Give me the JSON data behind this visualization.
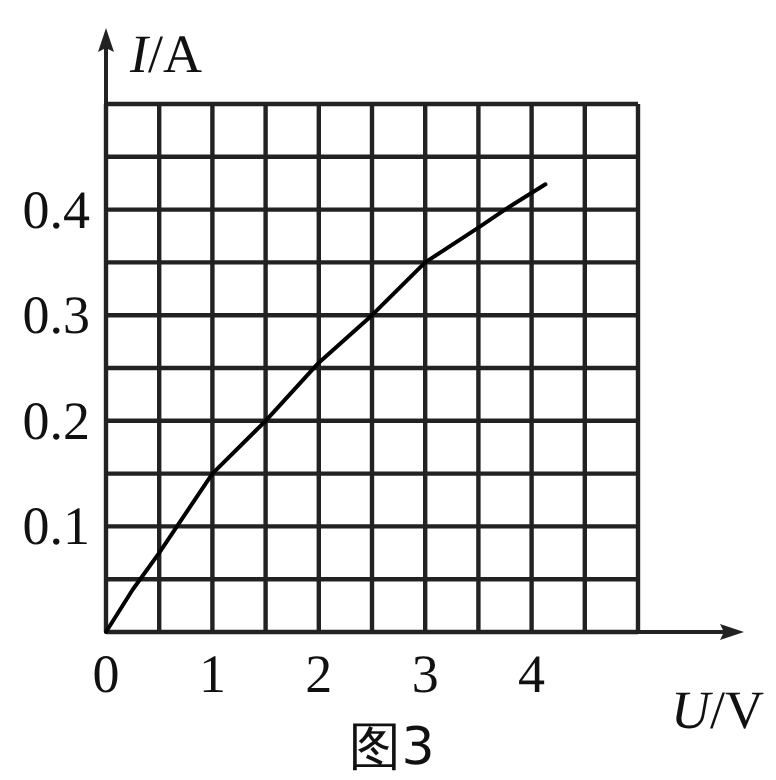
{
  "chart_data": {
    "type": "line",
    "xlabel": "*U*/V",
    "ylabel": "*I*/A",
    "annotations": [
      "图3"
    ],
    "xlim": [
      0,
      5
    ],
    "ylim": [
      0,
      0.5
    ],
    "xticks": [
      0,
      {
        "value": 0.5,
        "label": null
      },
      1,
      {
        "value": 1.5,
        "label": null
      },
      2,
      {
        "value": 2.5,
        "label": null
      },
      3,
      {
        "value": 3.5,
        "label": null
      },
      4,
      {
        "value": 4.5,
        "label": null
      },
      {
        "value": 5,
        "label": null
      }
    ],
    "yticks": [
      {
        "value": 0,
        "label": null
      },
      {
        "value": 0.05,
        "label": null
      },
      0.1,
      {
        "value": 0.15,
        "label": null
      },
      0.2,
      {
        "value": 0.25,
        "label": null
      },
      0.3,
      {
        "value": 0.35,
        "label": null
      },
      0.4,
      {
        "value": 0.45,
        "label": null
      },
      {
        "value": 0.5,
        "label": null
      }
    ],
    "grid": true,
    "series": [
      {
        "color": "#000000",
        "x": [
          0,
          0.25,
          0.5,
          1,
          1.5,
          2,
          2.5,
          3,
          3.5,
          3.75,
          4.13
        ],
        "values": [
          0,
          0.04,
          0.075,
          0.15,
          0.2,
          0.255,
          0.3,
          0.35,
          0.383,
          0.4,
          0.424
        ]
      }
    ]
  }
}
